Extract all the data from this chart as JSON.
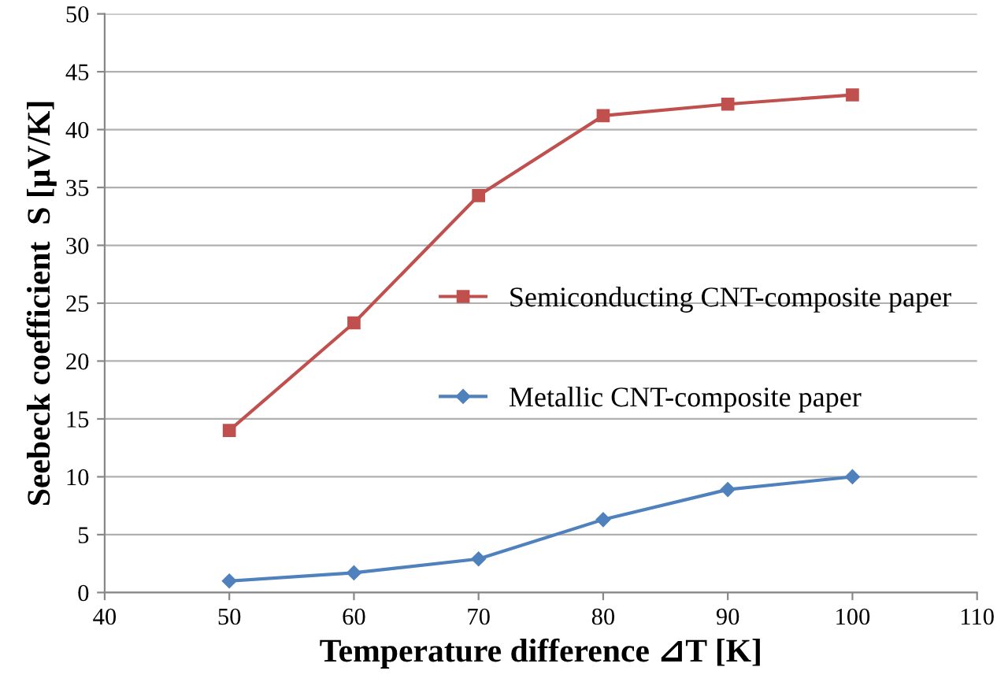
{
  "chart_data": {
    "type": "line",
    "xlabel": "Temperature difference ⊿T [K]",
    "ylabel": "Seebeck coefficient  S [μV/K]",
    "x": [
      50,
      60,
      70,
      80,
      90,
      100
    ],
    "series": [
      {
        "name": "Semiconducting CNT-composite paper",
        "color": "#c0504d",
        "marker": "square",
        "values": [
          14.0,
          23.3,
          34.3,
          41.2,
          42.2,
          43.0
        ]
      },
      {
        "name": "Metallic CNT-composite paper",
        "color": "#4f81bd",
        "marker": "diamond",
        "values": [
          1.0,
          1.7,
          2.9,
          6.3,
          8.9,
          10.0
        ]
      }
    ],
    "xlim": [
      40,
      110
    ],
    "xticks": [
      40,
      50,
      60,
      70,
      80,
      90,
      100,
      110
    ],
    "ylim": [
      0,
      50
    ],
    "yticks": [
      0,
      5,
      10,
      15,
      20,
      25,
      30,
      35,
      40,
      45,
      50
    ],
    "grid": "y",
    "legend": "right",
    "line_style": "solid"
  }
}
